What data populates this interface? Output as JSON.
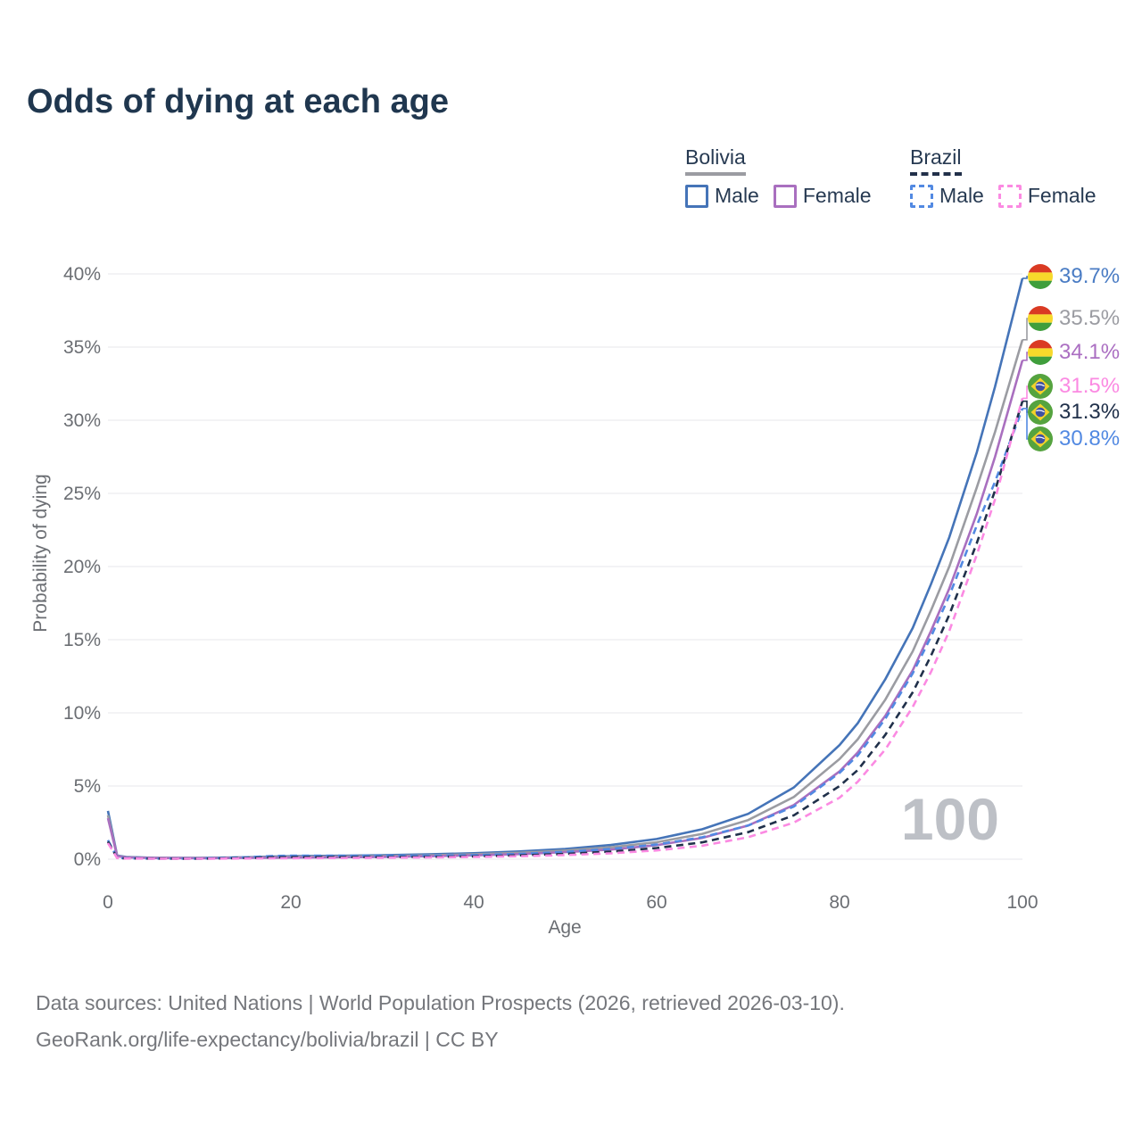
{
  "title": "Odds of dying at each age",
  "watermark": "100",
  "legend": {
    "groups": [
      {
        "label": "Bolivia",
        "line_style": "solid",
        "underline_color": "#9b9ca2",
        "items": [
          {
            "label": "Male",
            "color": "#4574b8",
            "dashed": false
          },
          {
            "label": "Female",
            "color": "#a96fbf",
            "dashed": false
          }
        ]
      },
      {
        "label": "Brazil",
        "line_style": "dashed",
        "underline_color": "#22304a",
        "items": [
          {
            "label": "Male",
            "color": "#5289e2",
            "dashed": true
          },
          {
            "label": "Female",
            "color": "#fb8ae2",
            "dashed": true
          }
        ]
      }
    ]
  },
  "y_axis": {
    "title": "Probability of dying"
  },
  "x_axis": {
    "title": "Age"
  },
  "footer": {
    "line1": "Data sources: United Nations | World Population Prospects (2026, retrieved 2026-03-10).",
    "line2": "GeoRank.org/life-expectancy/bolivia/brazil | CC BY"
  },
  "chart_data": {
    "type": "line",
    "title": "Odds of dying at each age",
    "xlabel": "Age",
    "ylabel": "Probability of dying",
    "xlim": [
      0,
      100
    ],
    "ylim_percent": [
      0,
      40
    ],
    "x_ticks": [
      0,
      20,
      40,
      60,
      80,
      100
    ],
    "y_ticks_percent": [
      0,
      5,
      10,
      15,
      20,
      25,
      30,
      35,
      40
    ],
    "grid": "horizontal",
    "grid_color": "#ececef",
    "tick_text_color": "#6b6e73",
    "watermark_hover_age": "100",
    "ages": [
      0,
      1,
      2,
      5,
      10,
      15,
      18,
      20,
      25,
      30,
      35,
      40,
      45,
      50,
      55,
      60,
      65,
      70,
      75,
      80,
      82,
      85,
      88,
      90,
      92,
      95,
      97,
      100
    ],
    "series": [
      {
        "name": "Bolivia Male",
        "country": "Bolivia",
        "sex": "Male",
        "style": "solid",
        "color": "#4574b8",
        "flag": "bolivia",
        "end_label": "39.7%",
        "end_value_percent": 39.7,
        "label_color": "#4a7cc4",
        "values_percent": [
          3.3,
          0.25,
          0.15,
          0.1,
          0.09,
          0.13,
          0.18,
          0.2,
          0.23,
          0.27,
          0.33,
          0.41,
          0.53,
          0.7,
          0.97,
          1.38,
          2.05,
          3.1,
          4.9,
          7.8,
          9.3,
          12.3,
          15.8,
          18.8,
          22.0,
          27.8,
          32.3,
          39.7
        ]
      },
      {
        "name": "Bolivia",
        "country": "Bolivia",
        "sex": "Both",
        "style": "solid",
        "color": "#9b9ca2",
        "flag": "bolivia",
        "end_label": "35.5%",
        "end_value_percent": 35.5,
        "label_color": "#9b9ca2",
        "values_percent": [
          3.0,
          0.22,
          0.13,
          0.09,
          0.08,
          0.11,
          0.14,
          0.16,
          0.18,
          0.21,
          0.26,
          0.33,
          0.44,
          0.59,
          0.81,
          1.16,
          1.73,
          2.67,
          4.25,
          6.85,
          8.2,
          10.9,
          14.2,
          17.0,
          20.0,
          25.4,
          29.2,
          35.5
        ]
      },
      {
        "name": "Bolivia Female",
        "country": "Bolivia",
        "sex": "Female",
        "style": "solid",
        "color": "#a96fbf",
        "flag": "bolivia",
        "end_label": "34.1%",
        "end_value_percent": 34.1,
        "label_color": "#ab6fc2",
        "values_percent": [
          2.8,
          0.2,
          0.12,
          0.08,
          0.07,
          0.09,
          0.1,
          0.11,
          0.13,
          0.16,
          0.2,
          0.26,
          0.35,
          0.48,
          0.66,
          0.96,
          1.46,
          2.3,
          3.7,
          6.0,
          7.3,
          9.8,
          12.9,
          15.6,
          18.5,
          23.6,
          27.5,
          34.1
        ]
      },
      {
        "name": "Brazil Male",
        "country": "Brazil",
        "sex": "Male",
        "style": "dashed",
        "color": "#5289e2",
        "flag": "brazil",
        "end_label": "30.8%",
        "end_value_percent": 30.8,
        "label_color": "#5289e2",
        "values_percent": [
          1.3,
          0.1,
          0.06,
          0.04,
          0.04,
          0.13,
          0.22,
          0.24,
          0.24,
          0.23,
          0.24,
          0.28,
          0.36,
          0.5,
          0.7,
          1.0,
          1.5,
          2.3,
          3.6,
          5.9,
          7.1,
          9.6,
          12.7,
          15.2,
          18.0,
          22.8,
          25.8,
          30.8
        ]
      },
      {
        "name": "Brazil",
        "country": "Brazil",
        "sex": "Both",
        "style": "dashed",
        "color": "#20304a",
        "flag": "brazil",
        "end_label": "31.3%",
        "end_value_percent": 31.3,
        "label_color": "#20304a",
        "values_percent": [
          1.2,
          0.09,
          0.05,
          0.04,
          0.03,
          0.08,
          0.13,
          0.14,
          0.14,
          0.14,
          0.16,
          0.19,
          0.26,
          0.36,
          0.52,
          0.76,
          1.15,
          1.85,
          3.0,
          5.0,
          6.1,
          8.5,
          11.4,
          13.9,
          16.7,
          21.6,
          25.2,
          31.3
        ]
      },
      {
        "name": "Brazil Female",
        "country": "Brazil",
        "sex": "Female",
        "style": "dashed",
        "color": "#fb8ae2",
        "flag": "brazil",
        "end_label": "31.5%",
        "end_value_percent": 31.5,
        "label_color": "#fb8ae2",
        "values_percent": [
          1.1,
          0.08,
          0.05,
          0.03,
          0.03,
          0.05,
          0.06,
          0.07,
          0.08,
          0.1,
          0.12,
          0.15,
          0.2,
          0.28,
          0.4,
          0.6,
          0.92,
          1.5,
          2.5,
          4.2,
          5.3,
          7.5,
          10.4,
          12.8,
          15.6,
          20.8,
          24.6,
          31.5
        ]
      }
    ],
    "end_labels_top_to_bottom": [
      "39.7%",
      "35.5%",
      "34.1%",
      "31.5%",
      "31.3%",
      "30.8%"
    ],
    "flag_colors": {
      "bolivia": {
        "red": "#da3a23",
        "yellow": "#f7d92b",
        "green": "#3f9e3c"
      },
      "brazil": {
        "green": "#55a33f",
        "yellow": "#f4d22a",
        "blue": "#3f51a3",
        "band": "#ffffff"
      }
    }
  }
}
